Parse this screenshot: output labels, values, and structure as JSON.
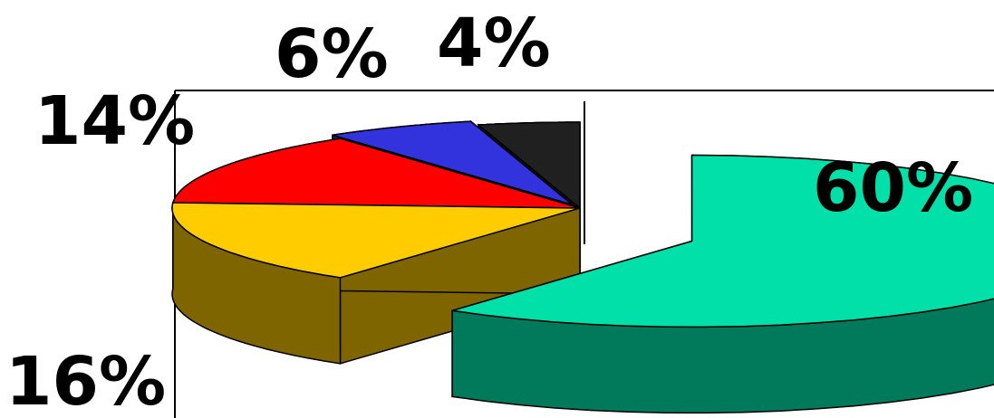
{
  "chart_data": {
    "type": "pie",
    "style": "3d exploded",
    "values": [
      60,
      16,
      14,
      6,
      4
    ],
    "labels": [
      "60%",
      "16%",
      "14%",
      "6%",
      "4%"
    ],
    "colors": {
      "top": [
        "#00e0a8",
        "#ffcc00",
        "#ff0000",
        "#3333dd",
        "#202020"
      ],
      "side": [
        "#007a5a",
        "#7f6500",
        "#8c0000",
        "#1a1a7a",
        "#101010"
      ]
    },
    "legend": "none"
  }
}
